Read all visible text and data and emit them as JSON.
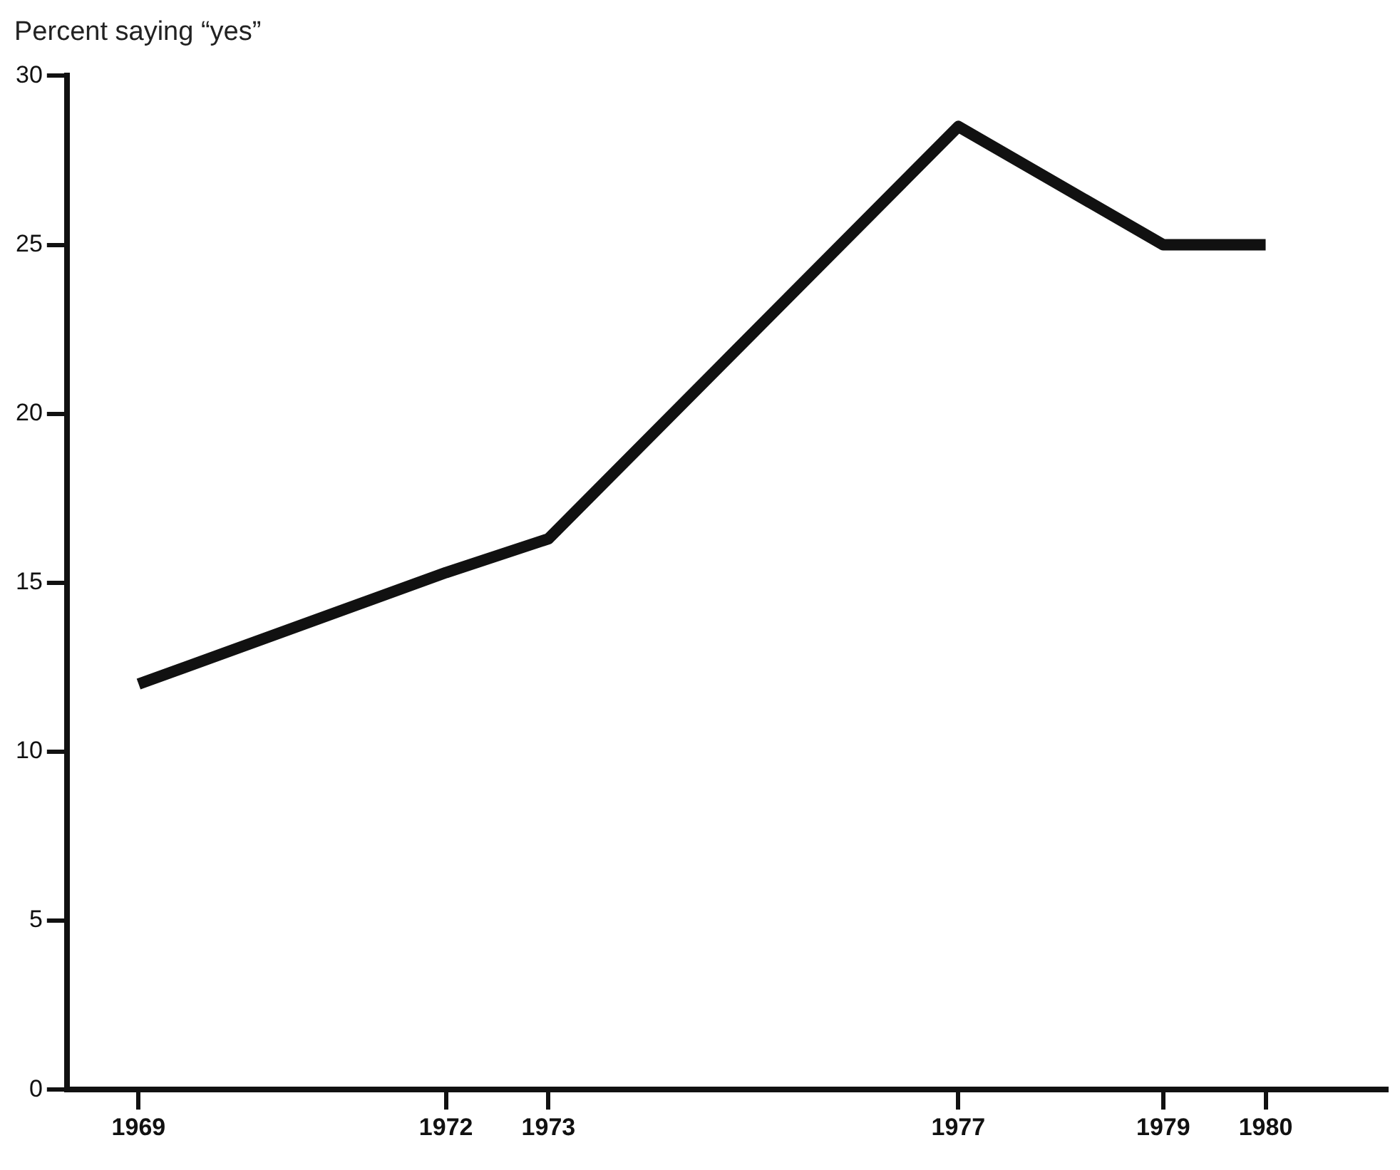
{
  "chart_data": {
    "type": "line",
    "ylabel": "Percent saying “yes”",
    "x": [
      1969,
      1972,
      1973,
      1977,
      1979,
      1980
    ],
    "series": [
      {
        "color": "#111111",
        "values": [
          12.0,
          15.3,
          16.3,
          28.5,
          25.0,
          25.0
        ]
      }
    ],
    "xlim": [
      1968.3,
      1981.2
    ],
    "xticks": [
      1969,
      1972,
      1973,
      1977,
      1979,
      1980
    ],
    "ylim": [
      0,
      30
    ],
    "yticks": [
      0,
      5,
      10,
      15,
      20,
      25,
      30
    ],
    "grid": false,
    "legend": false,
    "marker": "none",
    "line_style": "solid"
  }
}
